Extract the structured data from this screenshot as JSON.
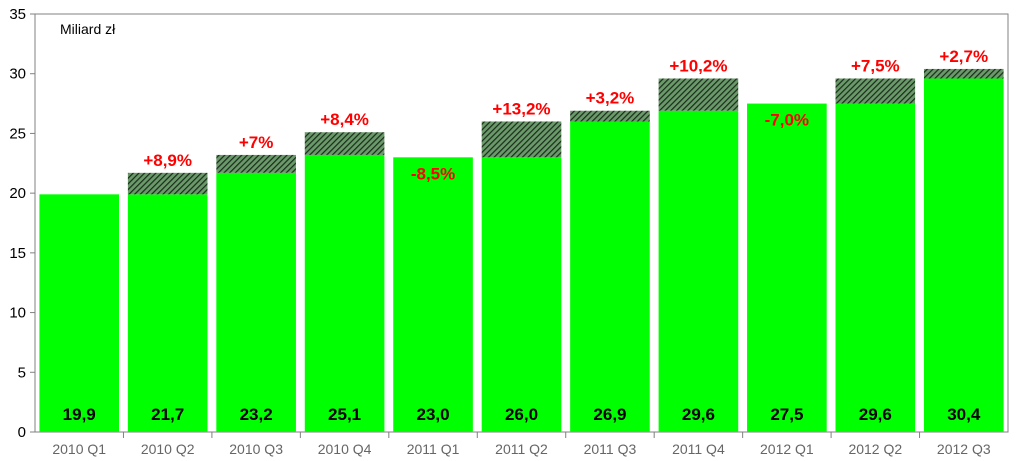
{
  "chart_data": {
    "type": "bar",
    "unit_label": "Miliard zł",
    "categories": [
      "2010 Q1",
      "2010 Q2",
      "2010 Q3",
      "2010 Q4",
      "2011 Q1",
      "2011 Q2",
      "2011 Q3",
      "2011 Q4",
      "2012 Q1",
      "2012 Q2",
      "2012 Q3"
    ],
    "values": [
      19.9,
      21.7,
      23.2,
      25.1,
      23.0,
      26.0,
      26.9,
      29.6,
      27.5,
      29.6,
      30.4
    ],
    "value_labels": [
      "19,9",
      "21,7",
      "23,2",
      "25,1",
      "23,0",
      "26,0",
      "26,9",
      "29,6",
      "27,5",
      "29,6",
      "30,4"
    ],
    "change_labels": [
      "",
      "+8,9%",
      "+7%",
      "+8,4%",
      "-8,5%",
      "+13,2%",
      "+3,2%",
      "+10,2%",
      "-7,0%",
      "+7,5%",
      "+2,7%"
    ],
    "ylim": [
      0,
      35
    ],
    "yticks": [
      0,
      5,
      10,
      15,
      20,
      25,
      30,
      35
    ],
    "grid": false,
    "colors": {
      "bar": "#00ff00",
      "increase_hatch": "#2b3a2b",
      "change_text": "#ff0000",
      "axis": "#808080"
    }
  }
}
